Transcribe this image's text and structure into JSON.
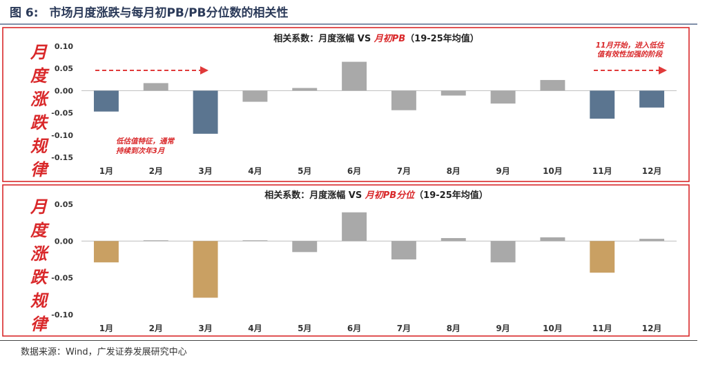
{
  "header": {
    "figure_no": "图 6:",
    "title": "市场月度涨跌与每月初PB/PB分位数的相关性"
  },
  "source": "数据来源：Wind，广发证券发展研究中心",
  "panels": [
    {
      "side_label": [
        "月",
        "度",
        "涨",
        "跌",
        "规",
        "律"
      ]
    },
    {
      "side_label": [
        "月",
        "度",
        "涨",
        "跌",
        "规",
        "律"
      ]
    }
  ],
  "colors": {
    "frame": "#d9282a",
    "blue": "#5b7590",
    "gray": "#a9a9a9",
    "tan": "#c9a063",
    "annotation": "#d9282a"
  },
  "chart_data": [
    {
      "type": "bar",
      "title_prefix": "相关系数：月度涨幅 VS ",
      "title_highlight": "月初PB",
      "title_suffix": "（19-25年均值）",
      "categories": [
        "1月",
        "2月",
        "3月",
        "4月",
        "5月",
        "6月",
        "7月",
        "8月",
        "9月",
        "10月",
        "11月",
        "12月"
      ],
      "values": [
        -0.047,
        0.017,
        -0.097,
        -0.025,
        0.006,
        0.065,
        -0.044,
        -0.011,
        -0.029,
        0.024,
        -0.063,
        -0.038
      ],
      "bar_colors": [
        "blue",
        "gray",
        "blue",
        "gray",
        "gray",
        "gray",
        "gray",
        "gray",
        "gray",
        "gray",
        "blue",
        "blue"
      ],
      "ylim": [
        -0.15,
        0.1
      ],
      "yticks": [
        "0.10",
        "0.05",
        "0.00",
        "-0.05",
        "-0.10",
        "-0.15"
      ],
      "ytick_values": [
        0.1,
        0.05,
        0.0,
        -0.05,
        -0.1,
        -0.15
      ],
      "annotations": [
        {
          "lines": [
            "低估值特征，通常",
            "持续到次年3月"
          ]
        },
        {
          "lines": [
            "11月开始，进入低估",
            "值有效性加强的阶段"
          ]
        }
      ],
      "grid": false
    },
    {
      "type": "bar",
      "title_prefix": "相关系数：月度涨幅 VS ",
      "title_highlight": "月初PB分位",
      "title_suffix": "（19-25年均值）",
      "categories": [
        "1月",
        "2月",
        "3月",
        "4月",
        "5月",
        "6月",
        "7月",
        "8月",
        "9月",
        "10月",
        "11月",
        "12月"
      ],
      "values": [
        -0.029,
        0.001,
        -0.077,
        0.001,
        -0.015,
        0.039,
        -0.025,
        0.004,
        -0.029,
        0.005,
        -0.043,
        0.003
      ],
      "bar_colors": [
        "tan",
        "gray",
        "tan",
        "gray",
        "gray",
        "gray",
        "gray",
        "gray",
        "gray",
        "gray",
        "tan",
        "gray"
      ],
      "ylim": [
        -0.1,
        0.05
      ],
      "yticks": [
        "0.05",
        "0.00",
        "-0.05",
        "-0.10"
      ],
      "ytick_values": [
        0.05,
        0.0,
        -0.05,
        -0.1
      ],
      "grid": false
    }
  ]
}
